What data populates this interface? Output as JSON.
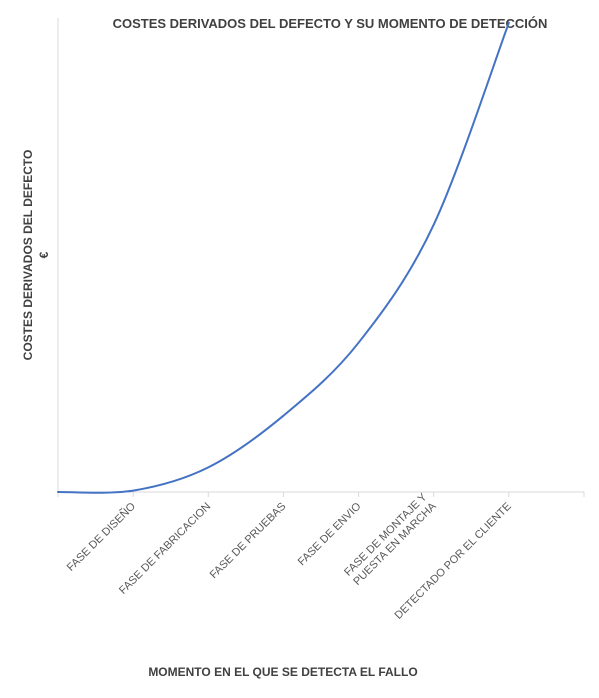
{
  "chart_data": {
    "type": "line",
    "title": "COSTES DERIVADOS DEL DEFECTO Y SU MOMENTO DE DETECCIÓN",
    "xlabel": "MOMENTO EN EL QUE SE DETECTA EL FALLO",
    "ylabel": [
      "COSTES DERIVADOS DEL DEFECTO",
      "€"
    ],
    "categories": [
      [
        "FASE DE DISEÑO"
      ],
      [
        "FASE DE FABRICACION"
      ],
      [
        "FASE DE PRUEBAS"
      ],
      [
        "FASE DE ENVIO"
      ],
      [
        "FASE DE MONTAJE Y",
        "PUESTA EN MARCHA"
      ],
      [
        "DETECTADO POR EL CLIENTE"
      ]
    ],
    "series": [
      {
        "values": [
          0.3,
          5.2,
          16.1,
          31.5,
          56.4,
          99.0
        ]
      }
    ],
    "ylim": [
      0,
      100
    ],
    "grid": false,
    "legend": "none",
    "colors": {
      "line": "#4472C4",
      "axis": "#D9D9D9",
      "text": "#404040",
      "ticks": "#595959"
    }
  }
}
